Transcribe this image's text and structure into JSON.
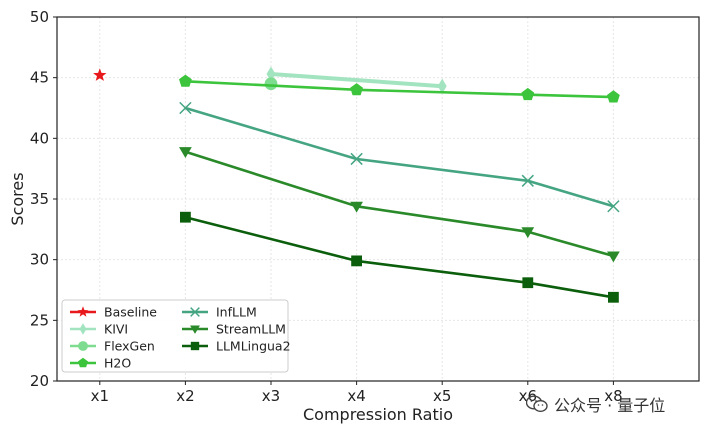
{
  "chart_data": {
    "type": "line",
    "title": "",
    "xlabel": "Compression Ratio",
    "ylabel": "Scores",
    "categories": [
      "x1",
      "x2",
      "x3",
      "x4",
      "x5",
      "x6",
      "x8"
    ],
    "ylim": [
      20,
      50
    ],
    "yticks": [
      20,
      25,
      30,
      35,
      40,
      45,
      50
    ],
    "grid": true,
    "legend_position": "lower-left",
    "series": [
      {
        "name": "Baseline",
        "marker": "star",
        "color": "#e8191c",
        "points": [
          {
            "x": "x1",
            "y": 45.2
          }
        ]
      },
      {
        "name": "KIVI",
        "marker": "thin-diamond",
        "color": "#a3e4c0",
        "points": [
          {
            "x": "x3",
            "y": 45.3
          },
          {
            "x": "x5",
            "y": 44.3
          }
        ]
      },
      {
        "name": "FlexGen",
        "marker": "circle",
        "color": "#7ddc8f",
        "points": [
          {
            "x": "x3",
            "y": 44.5
          }
        ]
      },
      {
        "name": "H2O",
        "marker": "pentagon",
        "color": "#3cc43c",
        "points": [
          {
            "x": "x2",
            "y": 44.7
          },
          {
            "x": "x4",
            "y": 44.0
          },
          {
            "x": "x6",
            "y": 43.6
          },
          {
            "x": "x8",
            "y": 43.4
          }
        ]
      },
      {
        "name": "InfLLM",
        "marker": "x",
        "color": "#45a582",
        "points": [
          {
            "x": "x2",
            "y": 42.5
          },
          {
            "x": "x4",
            "y": 38.3
          },
          {
            "x": "x6",
            "y": 36.5
          },
          {
            "x": "x8",
            "y": 34.4
          }
        ]
      },
      {
        "name": "StreamLLM",
        "marker": "triangle-down",
        "color": "#2a8a2a",
        "points": [
          {
            "x": "x2",
            "y": 38.9
          },
          {
            "x": "x4",
            "y": 34.4
          },
          {
            "x": "x6",
            "y": 32.3
          },
          {
            "x": "x8",
            "y": 30.3
          }
        ]
      },
      {
        "name": "LLMLingua2",
        "marker": "square",
        "color": "#0b5e0b",
        "points": [
          {
            "x": "x2",
            "y": 33.5
          },
          {
            "x": "x4",
            "y": 29.9
          },
          {
            "x": "x6",
            "y": 28.1
          },
          {
            "x": "x8",
            "y": 26.9
          }
        ]
      }
    ]
  },
  "watermark": {
    "text": "公众号 · 量子位",
    "icon": "wechat-icon"
  }
}
